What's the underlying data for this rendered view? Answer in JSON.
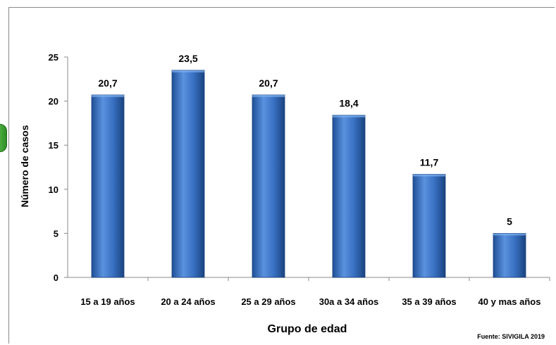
{
  "chart_data": {
    "type": "bar",
    "categories": [
      "15 a 19 años",
      "20 a 24 años",
      "25 a 29 años",
      "30a a 34 años",
      "35 a 39 años",
      "40 y mas años"
    ],
    "values": [
      20.7,
      23.5,
      20.7,
      18.4,
      11.7,
      5
    ],
    "data_labels": [
      "20,7",
      "23,5",
      "20,7",
      "18,4",
      "11,7",
      "5"
    ],
    "title": "",
    "xlabel": "Grupo de edad",
    "ylabel": "Número de casos",
    "ylim": [
      0,
      25
    ],
    "yticks": [
      "0",
      "5",
      "10",
      "15",
      "20",
      "25"
    ],
    "ytick_values": [
      0,
      5,
      10,
      15,
      20,
      25
    ],
    "grid": false,
    "bar_color": "#3a72c4",
    "source": "Fuente: SIVIGILA 2019"
  }
}
